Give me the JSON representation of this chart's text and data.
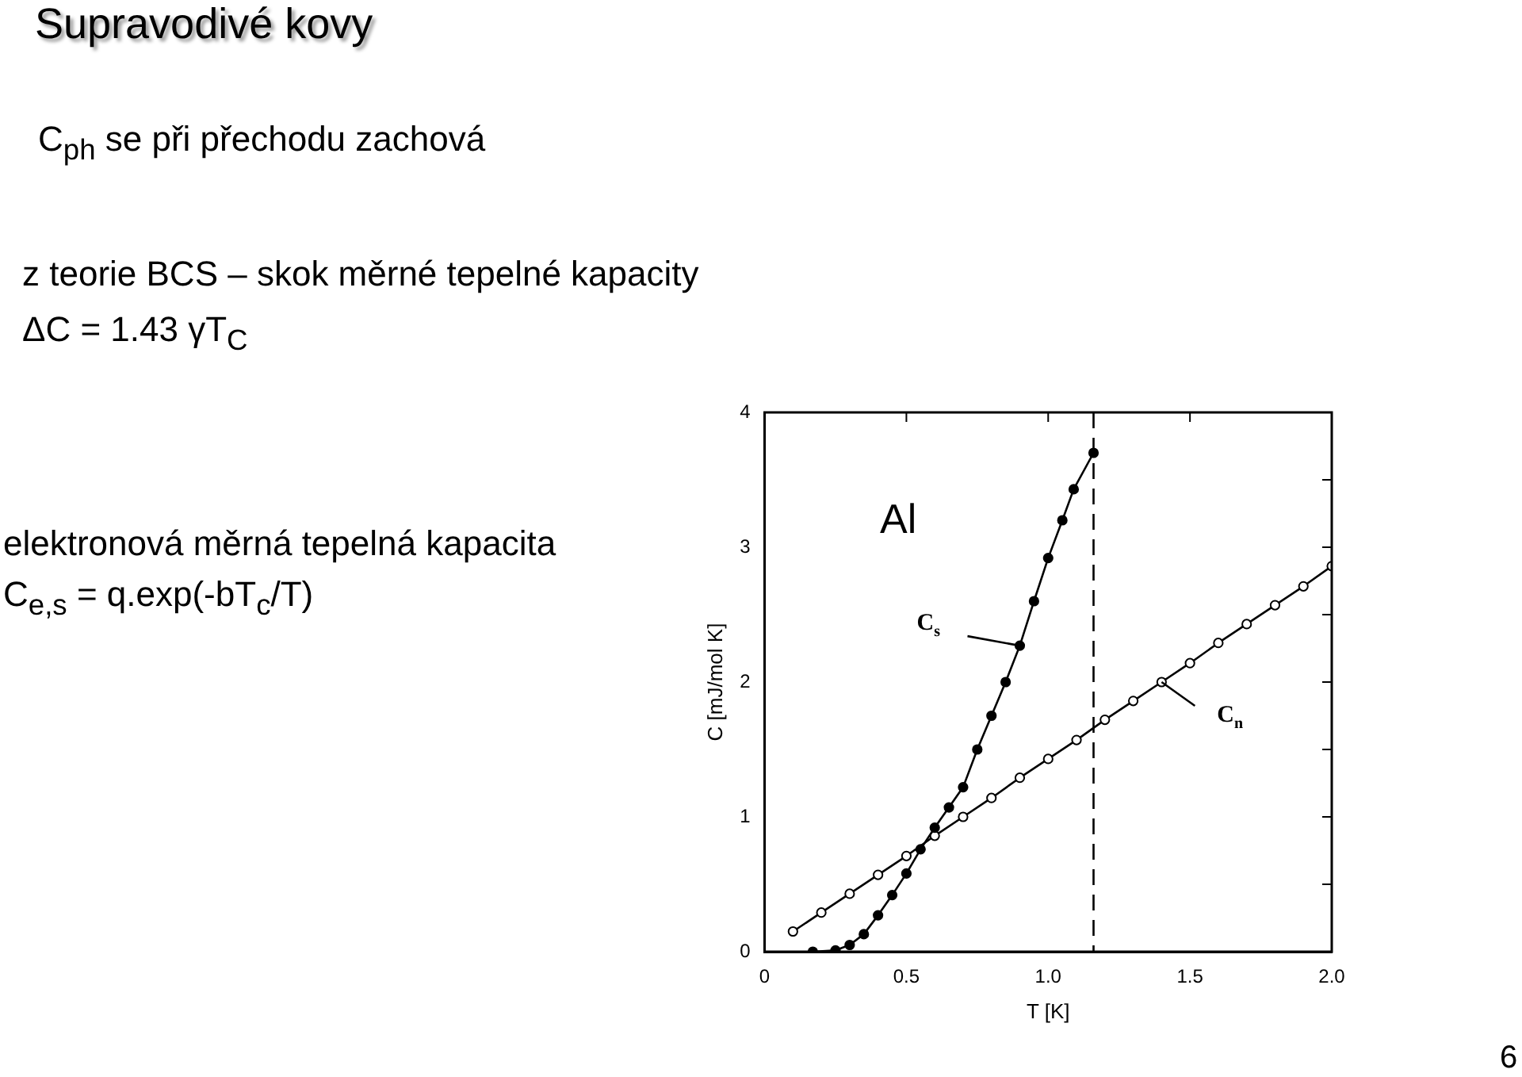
{
  "chart_data": {
    "type": "line",
    "title": "Supravodivé kovy",
    "xlabel": "T [K]",
    "ylabel": "C [mJ/mol K]",
    "annotations": [
      "C$_{ph}$ se při přechodu zachová",
      "z teorie BCS – skok měrné tepelné kapacity",
      "ΔC = 1.43 γT$_{C}$",
      "elektronová měrná tepelná kapacita",
      "C$_{e,s}$ = q.exp(-bT$_{c}$/T)",
      "6",
      "Al"
    ],
    "xlim": [
      0,
      2
    ],
    "xticks": [
      0,
      0.5,
      {
        "value": 1,
        "label": "1.0"
      },
      1.5,
      {
        "value": 2,
        "label": "2.0"
      }
    ],
    "ylim": [
      0,
      4
    ],
    "yticks": [
      0,
      {
        "value": 0.5,
        "label": null
      },
      1,
      {
        "value": 1.5,
        "label": null
      },
      2,
      {
        "value": 2.5,
        "label": null
      },
      3,
      {
        "value": 3.5,
        "label": null
      },
      4
    ],
    "grid": false,
    "marker": "circle",
    "line_style": "solid",
    "ref_lines": [
      {
        "axis": "x",
        "value": 1.16,
        "line_style": "dashed",
        "color": "#000000"
      }
    ],
    "series": [
      {
        "name": "C$_{s}$",
        "color": "#000000",
        "x": [
          0.17,
          0.25,
          0.3,
          0.35,
          0.4,
          0.45,
          0.5,
          0.55,
          0.6,
          0.65,
          0.7,
          0.75,
          0.8,
          0.85,
          0.9,
          0.95,
          1.0,
          1.05,
          1.09,
          1.16
        ],
        "values": [
          0.0,
          0.01,
          0.05,
          0.13,
          0.27,
          0.42,
          0.58,
          0.76,
          0.92,
          1.07,
          1.22,
          1.5,
          1.75,
          2.0,
          2.27,
          2.6,
          2.92,
          3.2,
          3.43,
          3.7
        ]
      },
      {
        "name": "C$_{n}$",
        "color": "#000000",
        "x": [
          0.1,
          0.2,
          0.3,
          0.4,
          0.5,
          0.6,
          0.7,
          0.8,
          0.9,
          1.0,
          1.1,
          1.2,
          1.3,
          1.4,
          1.5,
          1.6,
          1.7,
          1.8,
          1.9,
          2.0
        ],
        "values": [
          0.15,
          0.29,
          0.43,
          0.57,
          0.71,
          0.86,
          1.0,
          1.14,
          1.29,
          1.43,
          1.57,
          1.72,
          1.86,
          2.0,
          2.14,
          2.29,
          2.43,
          2.57,
          2.71,
          2.86
        ]
      }
    ]
  }
}
